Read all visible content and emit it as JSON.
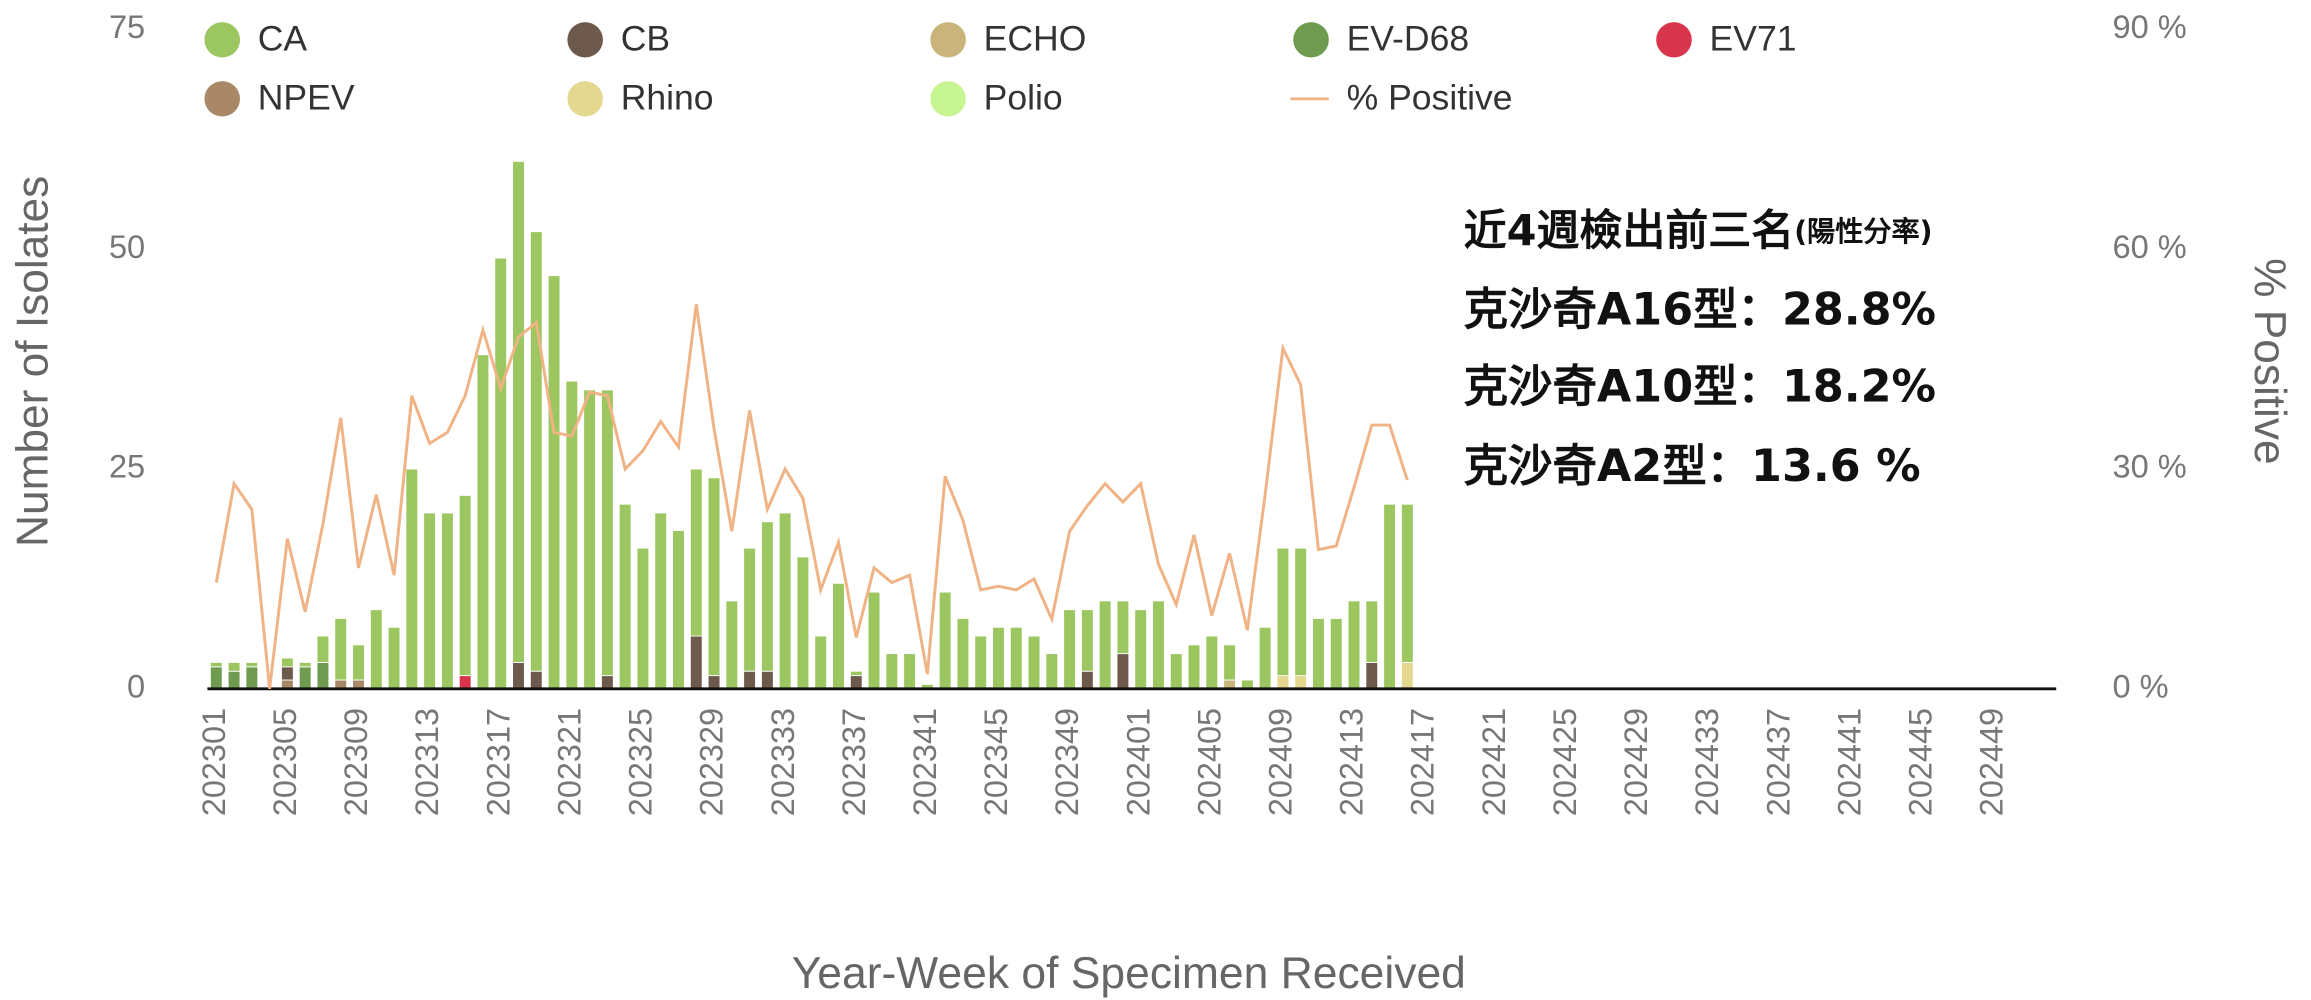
{
  "chart_data": {
    "type": "bar",
    "stacked": true,
    "annotation": {
      "heading": "近4週檢出前三名",
      "heading_note": "(陽性分率)",
      "lines": [
        "克沙奇A16型：28.8%",
        "克沙奇A10型：18.2%",
        "克沙奇A2型：13.6 %"
      ]
    },
    "xlabel": "Year-Week of Specimen Received",
    "ylabel": "Number of Isolates",
    "y2label": "% Positive",
    "ylim": [
      0,
      75
    ],
    "yticks": [
      0,
      25,
      50,
      75
    ],
    "y2lim": [
      0,
      90
    ],
    "y2ticks": [
      {
        "value": 0,
        "label": "0 %"
      },
      {
        "value": 30,
        "label": "30 %"
      },
      {
        "value": 60,
        "label": "60 %"
      },
      {
        "value": 90,
        "label": "90 %"
      }
    ],
    "grid": false,
    "categories": [
      "202301",
      null,
      null,
      null,
      "202305",
      null,
      null,
      null,
      "202309",
      null,
      null,
      null,
      "202313",
      null,
      null,
      null,
      "202317",
      null,
      null,
      null,
      "202321",
      null,
      null,
      null,
      "202325",
      null,
      null,
      null,
      "202329",
      null,
      null,
      null,
      "202333",
      null,
      null,
      null,
      "202337",
      null,
      null,
      null,
      "202341",
      null,
      null,
      null,
      "202345",
      null,
      null,
      null,
      "202349",
      null,
      null,
      null,
      "202401",
      null,
      null,
      null,
      "202405",
      null,
      null,
      null,
      "202409",
      null,
      null,
      null,
      "202413",
      null,
      null,
      null,
      "202417",
      null,
      null,
      null,
      "202421",
      null,
      null,
      null,
      "202425",
      null,
      null,
      null,
      "202429",
      null,
      null,
      null,
      "202433",
      null,
      null,
      null,
      "202437",
      null,
      null,
      null,
      "202441",
      null,
      null,
      null,
      "202445",
      null,
      null,
      null,
      "202449",
      null,
      null,
      null
    ],
    "series": [
      {
        "name": "CA",
        "color": "#9cc760",
        "values": [
          0.5,
          1,
          0.5,
          0,
          1,
          0.5,
          3,
          7,
          4,
          9,
          7,
          25,
          20,
          20,
          20.5,
          38,
          49,
          57,
          50,
          47,
          35,
          34,
          32.5,
          21,
          16,
          20,
          18,
          19,
          22.5,
          10,
          14,
          17,
          20,
          15,
          6,
          12,
          0.5,
          11,
          4,
          4,
          0.5,
          11,
          8,
          6,
          7,
          7,
          6,
          4,
          9,
          7,
          10,
          6,
          9,
          10,
          4,
          5,
          6,
          4,
          1,
          7,
          14.5,
          14.5,
          8,
          8,
          10,
          7,
          21,
          18,
          null,
          null,
          null,
          null,
          null,
          null,
          null,
          null,
          null,
          null,
          null,
          null,
          null,
          null,
          null,
          null,
          null,
          null,
          null,
          null,
          null,
          null,
          null,
          null,
          null,
          null,
          null,
          null,
          null,
          null,
          null,
          null,
          null,
          null,
          null,
          null
        ]
      },
      {
        "name": "CB",
        "color": "#6d5a4c",
        "values": [
          0,
          0,
          0,
          0,
          1.5,
          0,
          0,
          0,
          0,
          0,
          0,
          0,
          0,
          0,
          0,
          0,
          0,
          3,
          2,
          0,
          0,
          0,
          1.5,
          0,
          0,
          0,
          0,
          6,
          1.5,
          0,
          2,
          2,
          0,
          0,
          0,
          0,
          1.5,
          0,
          0,
          0,
          0,
          0,
          0,
          0,
          0,
          0,
          0,
          0,
          0,
          2,
          0,
          4,
          0,
          0,
          0,
          0,
          0,
          0,
          0,
          0,
          0,
          0,
          0,
          0,
          0,
          3,
          0,
          0,
          null,
          null,
          null,
          null,
          null,
          null,
          null,
          null,
          null,
          null,
          null,
          null,
          null,
          null,
          null,
          null,
          null,
          null,
          null,
          null,
          null,
          null,
          null,
          null,
          null,
          null,
          null,
          null,
          null,
          null,
          null,
          null,
          null,
          null,
          null,
          null
        ]
      },
      {
        "name": "ECHO",
        "color": "#c9b57c",
        "values": [
          0,
          0,
          0,
          0,
          0,
          0,
          0,
          0,
          0,
          0,
          0,
          0,
          0,
          0,
          0,
          0,
          0,
          0,
          0,
          0,
          0,
          0,
          0,
          0,
          0,
          0,
          0,
          0,
          0,
          0,
          0,
          0,
          0,
          0,
          0,
          0,
          0,
          0,
          0,
          0,
          0,
          0,
          0,
          0,
          0,
          0,
          0,
          0,
          0,
          0,
          0,
          0,
          0,
          0,
          0,
          0,
          0,
          1,
          0,
          0,
          0,
          0,
          0,
          0,
          0,
          0,
          0,
          0,
          null,
          null,
          null,
          null,
          null,
          null,
          null,
          null,
          null,
          null,
          null,
          null,
          null,
          null,
          null,
          null,
          null,
          null,
          null,
          null,
          null,
          null,
          null,
          null,
          null,
          null,
          null,
          null,
          null,
          null,
          null,
          null,
          null,
          null,
          null,
          null
        ]
      },
      {
        "name": "EV-D68",
        "color": "#6f9b50",
        "values": [
          2.5,
          2,
          2.5,
          0,
          0,
          2.5,
          3,
          0,
          0,
          0,
          0,
          0,
          0,
          0,
          0,
          0,
          0,
          0,
          0,
          0,
          0,
          0,
          0,
          0,
          0,
          0,
          0,
          0,
          0,
          0,
          0,
          0,
          0,
          0,
          0,
          0,
          0,
          0,
          0,
          0,
          0,
          0,
          0,
          0,
          0,
          0,
          0,
          0,
          0,
          0,
          0,
          0,
          0,
          0,
          0,
          0,
          0,
          0,
          0,
          0,
          0,
          0,
          0,
          0,
          0,
          0,
          0,
          0,
          null,
          null,
          null,
          null,
          null,
          null,
          null,
          null,
          null,
          null,
          null,
          null,
          null,
          null,
          null,
          null,
          null,
          null,
          null,
          null,
          null,
          null,
          null,
          null,
          null,
          null,
          null,
          null,
          null,
          null,
          null,
          null,
          null,
          null,
          null,
          null
        ]
      },
      {
        "name": "EV71",
        "color": "#d8344c",
        "values": [
          0,
          0,
          0,
          0,
          0,
          0,
          0,
          0,
          0,
          0,
          0,
          0,
          0,
          0,
          1.5,
          0,
          0,
          0,
          0,
          0,
          0,
          0,
          0,
          0,
          0,
          0,
          0,
          0,
          0,
          0,
          0,
          0,
          0,
          0,
          0,
          0,
          0,
          0,
          0,
          0,
          0,
          0,
          0,
          0,
          0,
          0,
          0,
          0,
          0,
          0,
          0,
          0,
          0,
          0,
          0,
          0,
          0,
          0,
          0,
          0,
          0,
          0,
          0,
          0,
          0,
          0,
          0,
          0,
          null,
          null,
          null,
          null,
          null,
          null,
          null,
          null,
          null,
          null,
          null,
          null,
          null,
          null,
          null,
          null,
          null,
          null,
          null,
          null,
          null,
          null,
          null,
          null,
          null,
          null,
          null,
          null,
          null,
          null,
          null,
          null,
          null,
          null,
          null,
          null
        ]
      },
      {
        "name": "NPEV",
        "color": "#a98868",
        "values": [
          0,
          0,
          0,
          0,
          1,
          0,
          0,
          1,
          1,
          0,
          0,
          0,
          0,
          0,
          0,
          0,
          0,
          0,
          0,
          0,
          0,
          0,
          0,
          0,
          0,
          0,
          0,
          0,
          0,
          0,
          0,
          0,
          0,
          0,
          0,
          0,
          0,
          0,
          0,
          0,
          0,
          0,
          0,
          0,
          0,
          0,
          0,
          0,
          0,
          0,
          0,
          0,
          0,
          0,
          0,
          0,
          0,
          0,
          0,
          0,
          0,
          0,
          0,
          0,
          0,
          0,
          0,
          0,
          null,
          null,
          null,
          null,
          null,
          null,
          null,
          null,
          null,
          null,
          null,
          null,
          null,
          null,
          null,
          null,
          null,
          null,
          null,
          null,
          null,
          null,
          null,
          null,
          null,
          null,
          null,
          null,
          null,
          null,
          null,
          null,
          null,
          null,
          null,
          null
        ]
      },
      {
        "name": "Rhino",
        "color": "#e4d790",
        "values": [
          0,
          0,
          0,
          0,
          0,
          0,
          0,
          0,
          0,
          0,
          0,
          0,
          0,
          0,
          0,
          0,
          0,
          0,
          0,
          0,
          0,
          0,
          0,
          0,
          0,
          0,
          0,
          0,
          0,
          0,
          0,
          0,
          0,
          0,
          0,
          0,
          0,
          0,
          0,
          0,
          0,
          0,
          0,
          0,
          0,
          0,
          0,
          0,
          0,
          0,
          0,
          0,
          0,
          0,
          0,
          0,
          0,
          0,
          0,
          0,
          1.5,
          1.5,
          0,
          0,
          0,
          0,
          0,
          3,
          null,
          null,
          null,
          null,
          null,
          null,
          null,
          null,
          null,
          null,
          null,
          null,
          null,
          null,
          null,
          null,
          null,
          null,
          null,
          null,
          null,
          null,
          null,
          null,
          null,
          null,
          null,
          null,
          null,
          null,
          null,
          null,
          null,
          null,
          null,
          null
        ]
      },
      {
        "name": "Polio",
        "color": "#c7f592",
        "values": [
          0,
          0,
          0,
          0,
          0,
          0,
          0,
          0,
          0,
          0,
          0,
          0,
          0,
          0,
          0,
          0,
          0,
          0,
          0,
          0,
          0,
          0,
          0,
          0,
          0,
          0,
          0,
          0,
          0,
          0,
          0,
          0,
          0,
          0,
          0,
          0,
          0,
          0,
          0,
          0,
          0,
          0,
          0,
          0,
          0,
          0,
          0,
          0,
          0,
          0,
          0,
          0,
          0,
          0,
          0,
          0,
          0,
          0,
          0,
          0,
          0,
          0,
          0,
          0,
          0,
          0,
          0,
          0,
          null,
          null,
          null,
          null,
          null,
          null,
          null,
          null,
          null,
          null,
          null,
          null,
          null,
          null,
          null,
          null,
          null,
          null,
          null,
          null,
          null,
          null,
          null,
          null,
          null,
          null,
          null,
          null,
          null,
          null,
          null,
          null,
          null,
          null,
          null,
          null
        ]
      },
      {
        "name": "% Positive",
        "color": "#f0b385",
        "type": "line",
        "axis": "y2",
        "values": [
          14.5,
          28,
          24.5,
          0,
          20.5,
          10.5,
          22.5,
          37,
          16.5,
          26.5,
          15.5,
          40,
          33.5,
          35,
          40,
          49,
          41,
          48,
          50,
          35,
          34.5,
          40.5,
          40,
          30,
          32.5,
          36.5,
          33,
          52.5,
          35.5,
          21.5,
          38,
          24.5,
          30,
          26,
          13.5,
          20,
          7,
          16.5,
          14.5,
          15.5,
          2,
          29,
          23,
          13.5,
          14,
          13.5,
          15,
          9.5,
          21.5,
          25,
          28,
          25.5,
          28,
          17,
          11.5,
          21,
          10,
          18.5,
          8,
          26.5,
          46.5,
          41.5,
          19,
          19.5,
          27.5,
          36,
          36,
          28.5,
          null,
          null,
          null,
          null,
          null,
          null,
          null,
          null,
          null,
          null,
          null,
          null,
          null,
          null,
          null,
          null,
          null,
          null,
          null,
          null,
          null,
          null,
          null,
          null,
          null,
          null,
          null,
          null,
          null,
          null,
          null,
          null,
          null,
          null,
          null,
          null
        ]
      }
    ]
  }
}
